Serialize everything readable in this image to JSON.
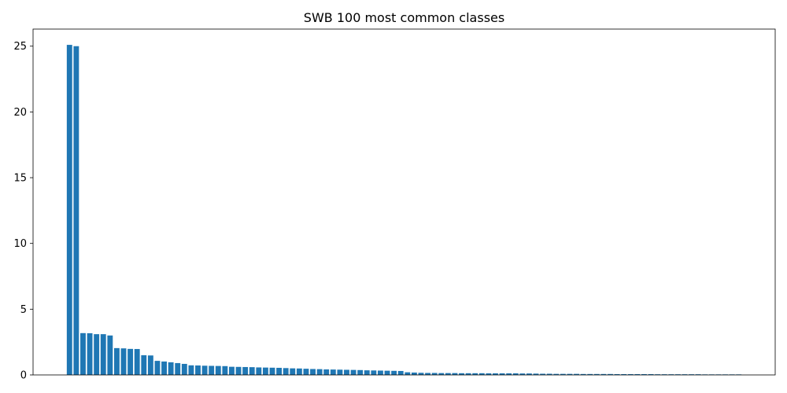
{
  "chart_data": {
    "type": "bar",
    "title": "SWB 100 most common classes",
    "xlabel": "",
    "ylabel": "",
    "ylim": [
      0,
      26.3
    ],
    "yticks": [
      0,
      5,
      10,
      15,
      20,
      25
    ],
    "grid": false,
    "bar_color": "#1f77b4",
    "values": [
      25.1,
      25.0,
      3.18,
      3.17,
      3.1,
      3.1,
      3.0,
      2.04,
      2.02,
      1.98,
      1.97,
      1.5,
      1.48,
      1.07,
      1.02,
      0.96,
      0.9,
      0.84,
      0.73,
      0.72,
      0.7,
      0.69,
      0.68,
      0.67,
      0.62,
      0.61,
      0.6,
      0.59,
      0.57,
      0.56,
      0.55,
      0.54,
      0.52,
      0.5,
      0.49,
      0.47,
      0.45,
      0.44,
      0.42,
      0.41,
      0.4,
      0.39,
      0.38,
      0.37,
      0.35,
      0.34,
      0.33,
      0.32,
      0.31,
      0.3,
      0.2,
      0.18,
      0.16,
      0.15,
      0.15,
      0.14,
      0.14,
      0.14,
      0.13,
      0.13,
      0.13,
      0.13,
      0.12,
      0.12,
      0.12,
      0.12,
      0.12,
      0.11,
      0.11,
      0.1,
      0.09,
      0.09,
      0.08,
      0.08,
      0.08,
      0.08,
      0.07,
      0.07,
      0.07,
      0.07,
      0.07,
      0.06,
      0.06,
      0.06,
      0.06,
      0.06,
      0.06,
      0.05,
      0.05,
      0.05,
      0.05,
      0.05,
      0.05,
      0.05,
      0.04,
      0.04,
      0.04,
      0.04,
      0.04,
      0.04
    ]
  }
}
